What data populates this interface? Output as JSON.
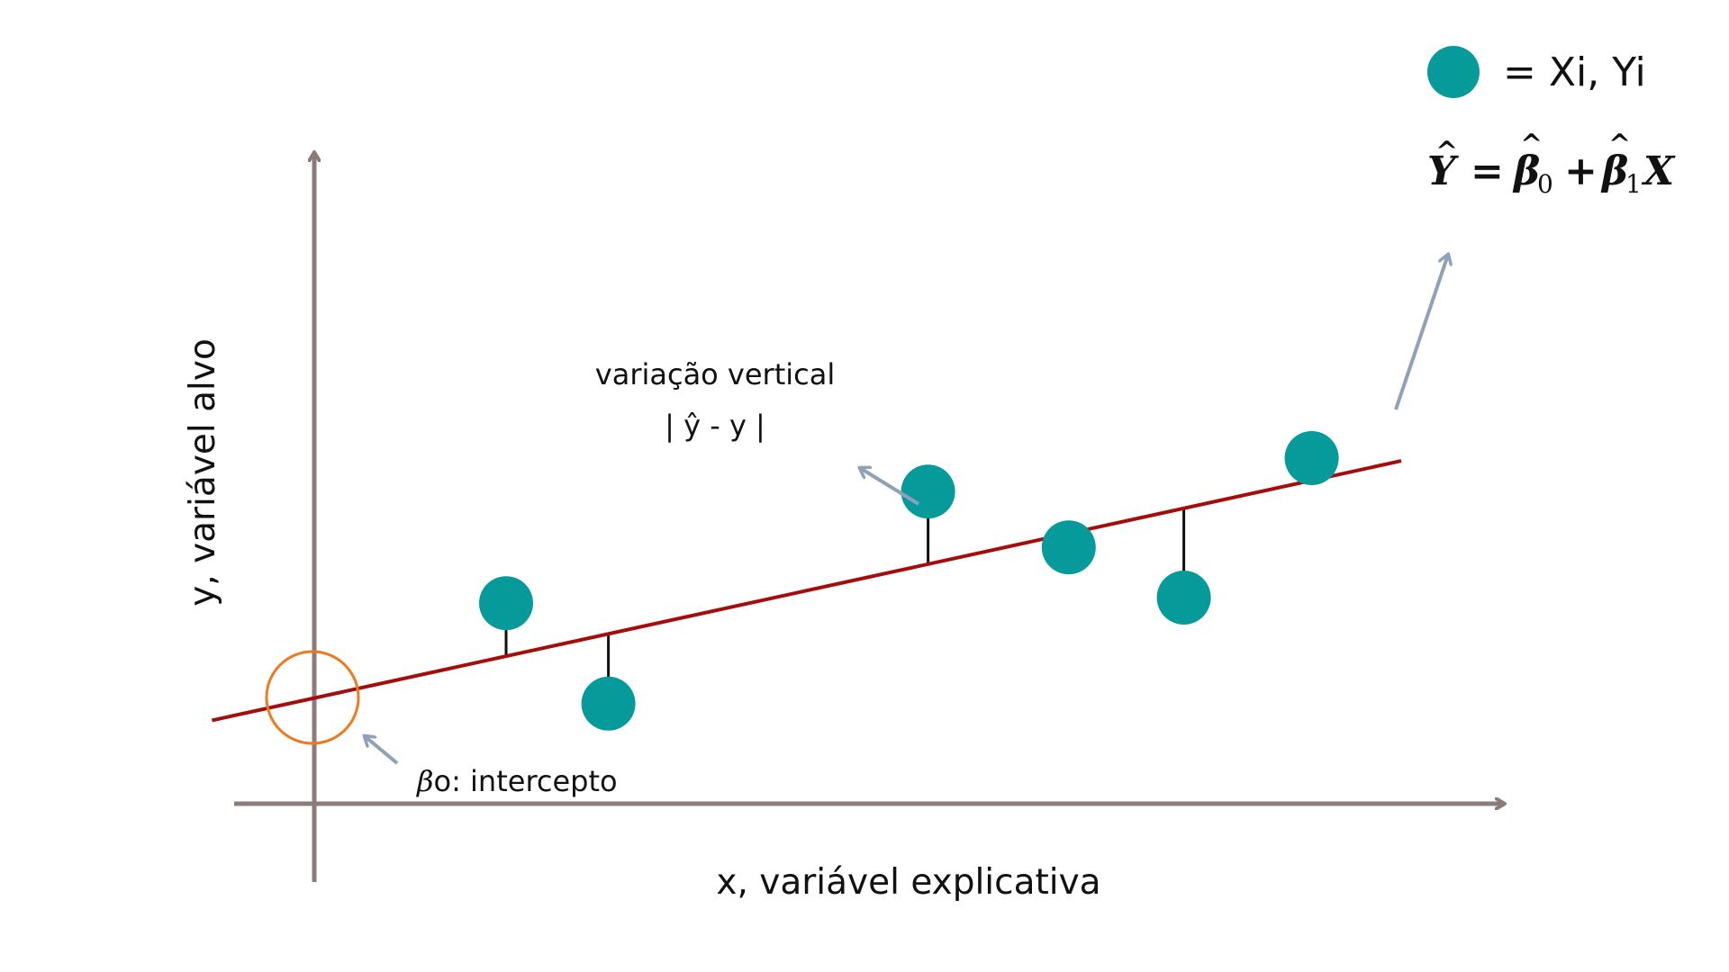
{
  "labels": {
    "x_axis": "x, variável explicativa",
    "y_axis": "y, variável alvo",
    "residual_title": "variação vertical",
    "residual_formula": "| ŷ - y |",
    "intercept_symbol": "β",
    "intercept_text": "o: intercepto"
  },
  "legend": {
    "point_text": "= Xi, Yi",
    "equation": {
      "Y": "Y",
      "eq": "=",
      "beta": "β",
      "sub0": "0",
      "plus": "+",
      "sub1": "1",
      "X": "X"
    }
  },
  "colors": {
    "axis": "#8c7b7b",
    "regression_line": "#a50d0d",
    "point": "#069a9a",
    "intercept_circle": "#ee7a1f",
    "pointer_arrow": "#8fa1b6",
    "residual": "#111111"
  },
  "points": [
    {
      "name": "point-1",
      "x": 1.5,
      "y": 2.9
    },
    {
      "name": "point-2",
      "x": 2.3,
      "y": 1.1
    },
    {
      "name": "point-3",
      "x": 4.8,
      "y": 4.9
    },
    {
      "name": "point-4",
      "x": 5.9,
      "y": 3.9
    },
    {
      "name": "point-5",
      "x": 6.8,
      "y": 3.0
    },
    {
      "name": "point-6",
      "x": 7.8,
      "y": 5.5
    }
  ],
  "regression": {
    "intercept": 1.2,
    "slope": 0.5
  }
}
